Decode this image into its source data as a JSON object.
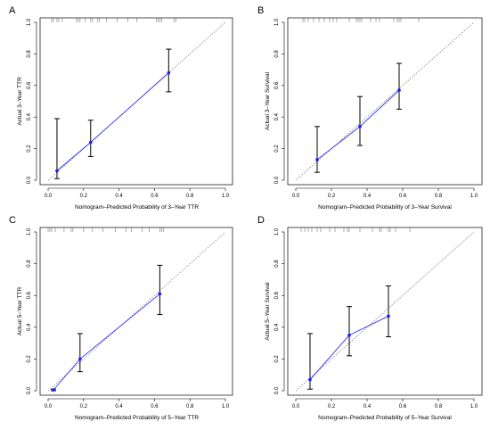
{
  "chart_data": [
    {
      "type": "scatter",
      "panel_label": "A",
      "xlabel": "Nomogram–Predicted Probability of 3–Year TTR",
      "ylabel": "Actual 3–Year TTR",
      "xlim": [
        0,
        1
      ],
      "ylim": [
        0,
        1
      ],
      "ticks": [
        "0.0",
        "0.2",
        "0.4",
        "0.6",
        "0.8",
        "1.0"
      ],
      "grid": false,
      "reference_line": "diagonal dotted",
      "points": [
        {
          "x": 0.05,
          "y": 0.06,
          "lower": 0.01,
          "upper": 0.39
        },
        {
          "x": 0.24,
          "y": 0.24,
          "lower": 0.15,
          "upper": 0.38
        },
        {
          "x": 0.68,
          "y": 0.68,
          "lower": 0.56,
          "upper": 0.83
        }
      ],
      "rug": [
        0.02,
        0.03,
        0.05,
        0.06,
        0.08,
        0.16,
        0.17,
        0.18,
        0.21,
        0.24,
        0.25,
        0.28,
        0.29,
        0.33,
        0.39,
        0.45,
        0.5,
        0.61,
        0.62,
        0.63,
        0.64,
        0.71,
        0.72
      ]
    },
    {
      "type": "scatter",
      "panel_label": "B",
      "xlabel": "Nomogram–Predicted Probability of 3–Year Survival",
      "ylabel": "Actual 3–Year Survival",
      "xlim": [
        0,
        1
      ],
      "ylim": [
        0,
        1
      ],
      "ticks": [
        "0.0",
        "0.2",
        "0.4",
        "0.6",
        "0.8",
        "1.0"
      ],
      "grid": false,
      "reference_line": "diagonal dotted",
      "points": [
        {
          "x": 0.12,
          "y": 0.13,
          "lower": 0.05,
          "upper": 0.34
        },
        {
          "x": 0.36,
          "y": 0.34,
          "lower": 0.22,
          "upper": 0.53
        },
        {
          "x": 0.58,
          "y": 0.57,
          "lower": 0.45,
          "upper": 0.74
        }
      ],
      "rug": [
        0.04,
        0.05,
        0.07,
        0.1,
        0.13,
        0.16,
        0.19,
        0.21,
        0.23,
        0.3,
        0.34,
        0.35,
        0.36,
        0.37,
        0.42,
        0.45,
        0.47,
        0.55,
        0.57,
        0.58,
        0.59,
        0.69
      ]
    },
    {
      "type": "scatter",
      "panel_label": "C",
      "xlabel": "Nomogram–Predicted Probability of 5–Year TTR",
      "ylabel": "Actual 5–Year TTR",
      "xlim": [
        0,
        1
      ],
      "ylim": [
        0,
        1
      ],
      "ticks": [
        "0.0",
        "0.2",
        "0.4",
        "0.6",
        "0.8",
        "1.0"
      ],
      "grid": false,
      "reference_line": "diagonal dotted",
      "points": [
        {
          "x": 0.03,
          "y": 0.005,
          "lower": 0.0,
          "upper": 0.01
        },
        {
          "x": 0.18,
          "y": 0.2,
          "lower": 0.12,
          "upper": 0.36
        },
        {
          "x": 0.63,
          "y": 0.61,
          "lower": 0.48,
          "upper": 0.79
        }
      ],
      "rug": [
        0.0,
        0.01,
        0.02,
        0.04,
        0.09,
        0.13,
        0.14,
        0.2,
        0.25,
        0.31,
        0.38,
        0.44,
        0.47,
        0.53,
        0.57,
        0.63,
        0.64,
        0.65
      ]
    },
    {
      "type": "scatter",
      "panel_label": "D",
      "xlabel": "Nomogram–Predicted Probability of 5–Year Survival",
      "ylabel": "Actual 5–Year Survival",
      "xlim": [
        0,
        1
      ],
      "ylim": [
        0,
        1
      ],
      "ticks": [
        "0.0",
        "0.2",
        "0.4",
        "0.6",
        "0.8",
        "1.0"
      ],
      "grid": false,
      "reference_line": "diagonal dotted",
      "points": [
        {
          "x": 0.08,
          "y": 0.07,
          "lower": 0.01,
          "upper": 0.36
        },
        {
          "x": 0.3,
          "y": 0.35,
          "lower": 0.22,
          "upper": 0.53
        },
        {
          "x": 0.52,
          "y": 0.47,
          "lower": 0.34,
          "upper": 0.66
        }
      ],
      "rug": [
        0.03,
        0.05,
        0.07,
        0.09,
        0.12,
        0.14,
        0.19,
        0.22,
        0.27,
        0.29,
        0.3,
        0.36,
        0.43,
        0.47,
        0.48,
        0.52,
        0.53,
        0.56,
        0.64
      ]
    }
  ],
  "colors": {
    "observed_line": "#3333ff",
    "observed_point": "#1a1aff",
    "error_bar": "#000000",
    "reference_line": "#808080",
    "rug": "#9a9a9a",
    "axis": "#000000"
  }
}
